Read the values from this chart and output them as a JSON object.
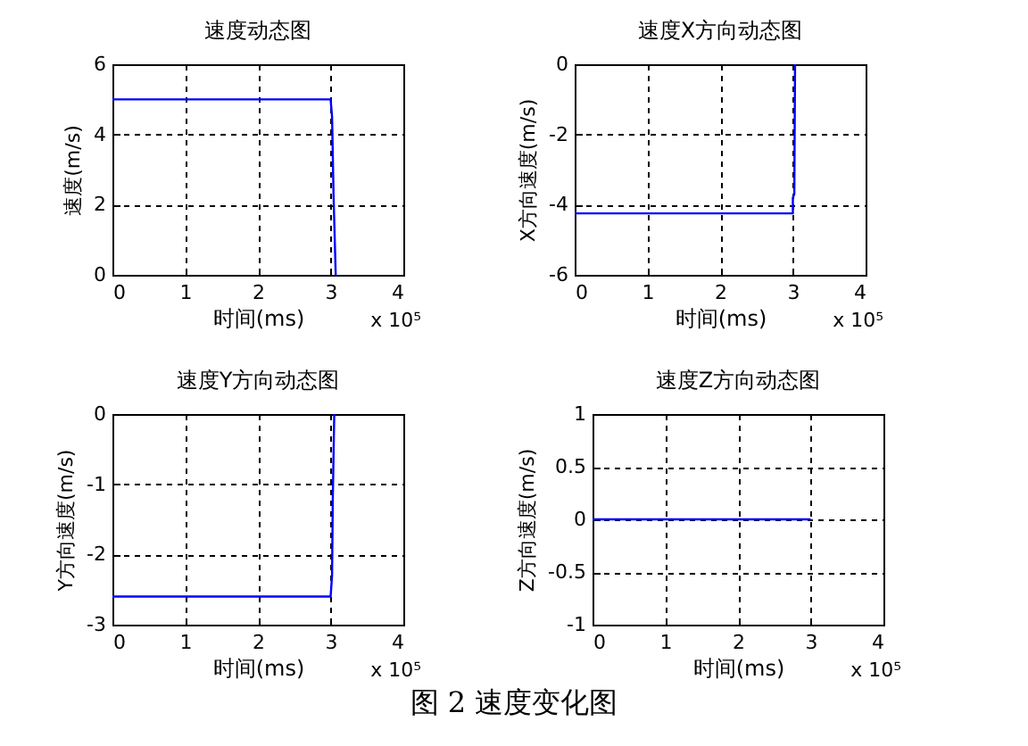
{
  "chart_data": [
    {
      "type": "line",
      "title": "速度动态图",
      "xlabel": "时间(ms)",
      "ylabel": "速度(m/s)",
      "x": [
        0,
        3,
        3.02,
        3.04,
        3.07
      ],
      "series": [
        {
          "color": "#0000ff",
          "values": [
            5,
            5,
            4.5,
            2.3,
            0
          ]
        }
      ],
      "xlim": [
        0,
        4
      ],
      "xticks": [
        0,
        1,
        2,
        3,
        4
      ],
      "ylim": [
        0,
        6
      ],
      "yticks": [
        0,
        2,
        4,
        6
      ],
      "grid": true,
      "line_style": "solid",
      "annotations": [
        "x 10⁵"
      ]
    },
    {
      "type": "line",
      "title": "速度X方向动态图",
      "xlabel": "时间(ms)",
      "ylabel": "X方向速度(m/s)",
      "x": [
        0,
        3,
        3,
        3.02,
        3.03
      ],
      "series": [
        {
          "color": "#0000ff",
          "values": [
            -4.25,
            -4.25,
            -3.8,
            -3.7,
            0
          ]
        }
      ],
      "xlim": [
        0,
        4
      ],
      "xticks": [
        0,
        1,
        2,
        3,
        4
      ],
      "ylim": [
        -6,
        0
      ],
      "yticks": [
        -6,
        -4,
        -2,
        0
      ],
      "grid": true,
      "line_style": "solid",
      "annotations": [
        "x 10⁵"
      ]
    },
    {
      "type": "line",
      "title": "速度Y方向动态图",
      "xlabel": "时间(ms)",
      "ylabel": "Y方向速度(m/s)",
      "x": [
        0,
        3,
        3.02,
        3.03,
        3.05
      ],
      "series": [
        {
          "color": "#0000ff",
          "values": [
            -2.6,
            -2.6,
            -2.3,
            -1.2,
            0
          ]
        }
      ],
      "xlim": [
        0,
        4
      ],
      "xticks": [
        0,
        1,
        2,
        3,
        4
      ],
      "ylim": [
        -3,
        0
      ],
      "yticks": [
        -3,
        -2,
        -1,
        0
      ],
      "grid": true,
      "line_style": "solid",
      "annotations": [
        "x 10⁵"
      ]
    },
    {
      "type": "line",
      "title": "速度Z方向动态图",
      "xlabel": "时间(ms)",
      "ylabel": "Z方向速度(m/s)",
      "x": [
        0,
        3
      ],
      "series": [
        {
          "color": "#0000ff",
          "values": [
            0,
            0
          ]
        }
      ],
      "xlim": [
        0,
        4
      ],
      "xticks": [
        0,
        1,
        2,
        3,
        4
      ],
      "ylim": [
        -1,
        1
      ],
      "yticks": [
        -1,
        -0.5,
        0,
        0.5,
        1
      ],
      "grid": true,
      "line_style": "solid",
      "annotations": [
        "x 10⁵",
        "图 2 速度变化图"
      ]
    }
  ]
}
